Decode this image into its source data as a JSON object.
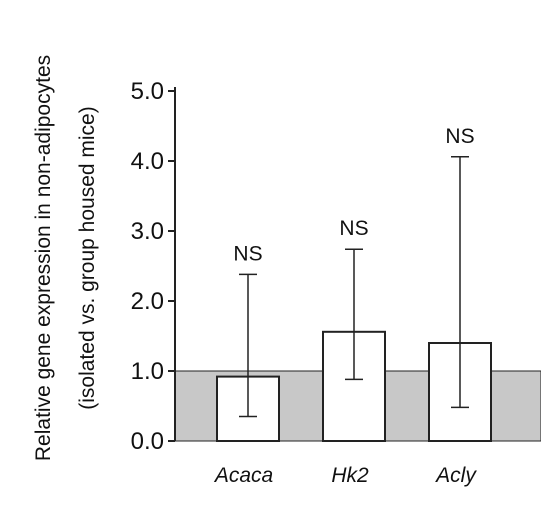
{
  "chart_data": {
    "type": "bar",
    "categories": [
      "Acaca",
      "Hk2",
      "Acly"
    ],
    "values": [
      0.92,
      1.56,
      1.4
    ],
    "error_bars": {
      "upper": [
        2.38,
        2.74,
        4.06
      ],
      "lower": [
        0.35,
        0.88,
        0.48
      ]
    },
    "annotations": [
      "NS",
      "NS",
      "NS"
    ],
    "ylabel_lines": [
      "Relative gene expression in non-adipocytes",
      "(isolated vs. group housed mice)"
    ],
    "yticks": [
      "0.0",
      "1.0",
      "2.0",
      "3.0",
      "4.0",
      "5.0"
    ],
    "ylim": [
      0,
      5.0
    ],
    "baseline_band": [
      0,
      1.0
    ],
    "grid": false,
    "legend": "none",
    "colors": {
      "bar_fill": "#ffffff",
      "bar_stroke": "#222222",
      "band_fill": "#c8c8c8",
      "axis": "#222222"
    }
  }
}
